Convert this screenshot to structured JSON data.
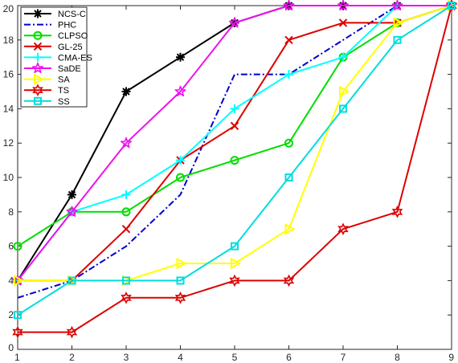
{
  "chart_data": {
    "type": "line",
    "title": "",
    "xlabel": "",
    "ylabel": "",
    "x": [
      1,
      2,
      3,
      4,
      5,
      6,
      7,
      8,
      9
    ],
    "xlim": [
      1,
      9
    ],
    "ylim": [
      0,
      20
    ],
    "xticks": [
      "1",
      "2",
      "3",
      "4",
      "5",
      "6",
      "7",
      "8",
      "9"
    ],
    "yticks": [
      "0",
      "2",
      "4",
      "6",
      "8",
      "10",
      "12",
      "14",
      "16",
      "18",
      "20"
    ],
    "grid": false,
    "legend_position": "top-left",
    "series": [
      {
        "name": "NCS-C",
        "color": "#000000",
        "dash": "solid",
        "marker": "asterisk",
        "values": [
          4,
          9,
          15,
          17,
          19,
          20,
          20,
          20,
          20
        ]
      },
      {
        "name": "PHC",
        "color": "#0000cc",
        "dash": "dashdot",
        "marker": "none",
        "values": [
          3,
          4,
          6,
          9,
          16,
          16,
          18,
          20,
          20
        ]
      },
      {
        "name": "CLPSO",
        "color": "#00dd00",
        "dash": "solid",
        "marker": "circle",
        "values": [
          6,
          8,
          8,
          10,
          11,
          12,
          17,
          19,
          20
        ]
      },
      {
        "name": "GL-25",
        "color": "#dd0000",
        "dash": "solid",
        "marker": "x",
        "values": [
          4,
          4,
          7,
          11,
          13,
          18,
          19,
          19,
          20
        ]
      },
      {
        "name": "CMA-ES",
        "color": "#00ffff",
        "dash": "solid",
        "marker": "plus",
        "values": [
          4,
          8,
          9,
          11,
          14,
          16,
          17,
          20,
          20
        ]
      },
      {
        "name": "SaDE",
        "color": "#ee11ee",
        "dash": "solid",
        "marker": "star",
        "values": [
          4,
          8,
          12,
          15,
          19,
          20,
          20,
          20,
          20
        ]
      },
      {
        "name": "SA",
        "color": "#ffff00",
        "dash": "solid",
        "marker": "triangle-right",
        "values": [
          4,
          4,
          4,
          5,
          5,
          7,
          15,
          19,
          20
        ]
      },
      {
        "name": "TS",
        "color": "#dd0000",
        "dash": "solid",
        "marker": "hexagram",
        "values": [
          1,
          1,
          3,
          3,
          4,
          4,
          7,
          8,
          20
        ]
      },
      {
        "name": "SS",
        "color": "#00dddd",
        "dash": "solid",
        "marker": "square",
        "values": [
          2,
          4,
          4,
          4,
          6,
          10,
          14,
          18,
          20
        ]
      }
    ]
  }
}
